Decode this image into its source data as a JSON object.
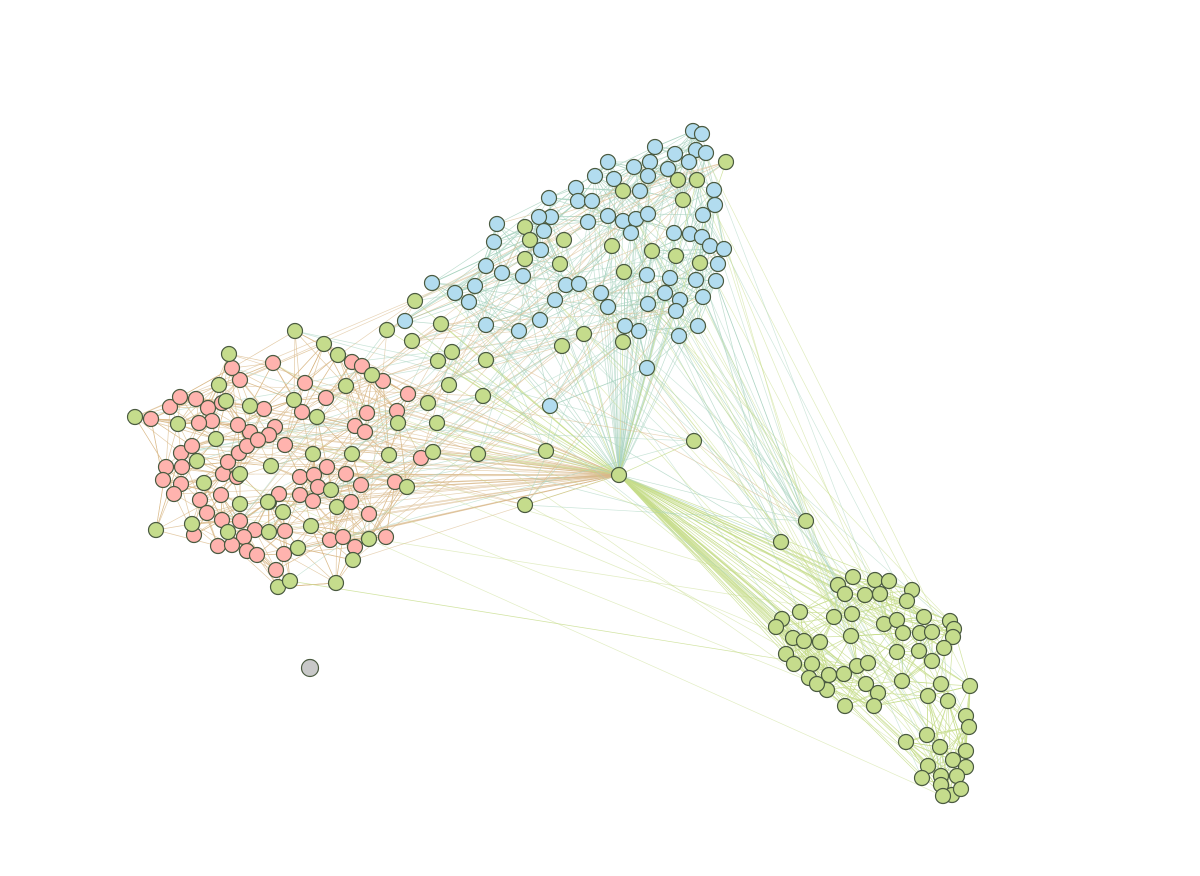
{
  "network": {
    "colors": {
      "group_a": "#ffb3ae",
      "group_b": "#b2dcef",
      "group_c": "#c5dc8c",
      "isolated": "#c8c8c8",
      "node_stroke": "#4a5a40",
      "edge_ac": "#d9b98a",
      "edge_bc": "#a9d3c0",
      "edge_c": "#c6dc8a",
      "edge_a": "#e9b0a8",
      "edge_b": "#a8d4e8"
    },
    "groups": [
      "group_a",
      "group_b",
      "group_c",
      "isolated"
    ]
  }
}
